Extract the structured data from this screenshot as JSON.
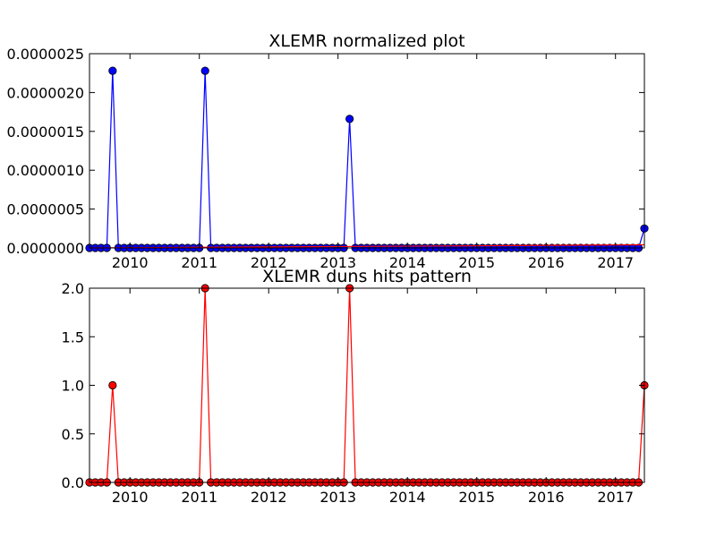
{
  "chart_data": [
    {
      "type": "line",
      "title": "XLEMR normalized plot",
      "xlabel": "",
      "ylabel": "",
      "x_range": [
        "2009-06",
        "2017-06"
      ],
      "ylim": [
        0,
        2.5e-06
      ],
      "x_ticks": [
        "2010",
        "2011",
        "2012",
        "2013",
        "2014",
        "2015",
        "2016",
        "2017"
      ],
      "y_ticks": [
        "0.0000000",
        "0.0000005",
        "0.0000010",
        "0.0000015",
        "0.0000020",
        "0.0000025"
      ],
      "grid": false,
      "series": [
        {
          "color": "#0000ff",
          "marker": "circle",
          "points": [
            {
              "x": "2009-10",
              "y": 2.28e-06
            },
            {
              "x": "2011-02",
              "y": 2.28e-06
            },
            {
              "x": "2013-03",
              "y": 1.66e-06
            },
            {
              "x": "2017-06",
              "y": 2.5e-07
            }
          ],
          "baseline": 0
        },
        {
          "color": "#ff0000",
          "marker": "none",
          "points": [
            {
              "x": "2009-06",
              "y": 0
            },
            {
              "x": "2017-06",
              "y": 4e-08
            }
          ],
          "baseline": 0
        }
      ]
    },
    {
      "type": "line",
      "title": "XLEMR duns hits pattern",
      "xlabel": "",
      "ylabel": "",
      "x_range": [
        "2009-06",
        "2017-06"
      ],
      "ylim": [
        0,
        2.0
      ],
      "x_ticks": [
        "2010",
        "2011",
        "2012",
        "2013",
        "2014",
        "2015",
        "2016",
        "2017"
      ],
      "y_ticks": [
        "0.0",
        "0.5",
        "1.0",
        "1.5",
        "2.0"
      ],
      "grid": false,
      "series": [
        {
          "color": "#ff0000",
          "marker": "circle",
          "points": [
            {
              "x": "2009-10",
              "y": 1
            },
            {
              "x": "2011-02",
              "y": 2
            },
            {
              "x": "2013-03",
              "y": 2
            },
            {
              "x": "2017-06",
              "y": 1
            }
          ],
          "baseline": 0
        }
      ]
    }
  ]
}
